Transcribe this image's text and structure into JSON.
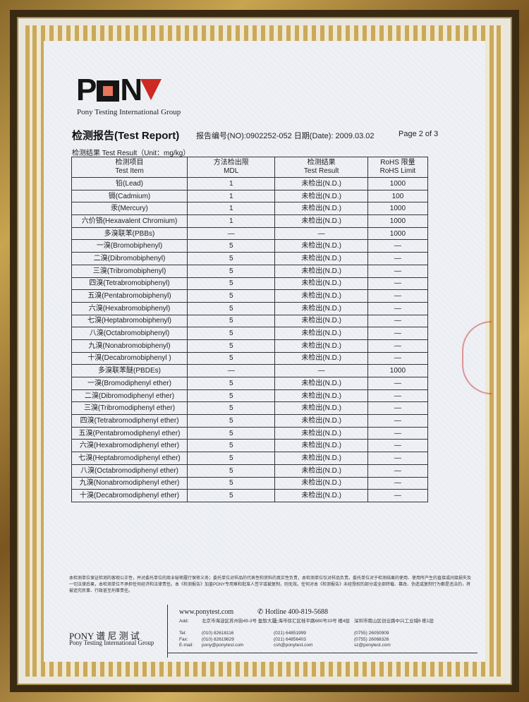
{
  "logo": {
    "text": "PONY",
    "subtitle": "Pony Testing International Group"
  },
  "header": {
    "title": "检测报告(Test Report)",
    "report_no": "报告编号(NO):0902252-052",
    "date": "日期(Date): 2009.03.02",
    "page": "Page 2 of 3"
  },
  "unit_label": "检测结果 Test Result（Unit：mg/kg）",
  "table": {
    "headers": [
      [
        "检测项目",
        "Test Item"
      ],
      [
        "方法检出限",
        "MDL"
      ],
      [
        "检测结果",
        "Test Result"
      ],
      [
        "RoHS 限量",
        "RoHS Limit"
      ]
    ],
    "rows": [
      [
        "铅(Lead)",
        "1",
        "未检出(N.D.)",
        "1000"
      ],
      [
        "镉(Cadmium)",
        "1",
        "未检出(N.D.)",
        "100"
      ],
      [
        "汞(Mercury)",
        "1",
        "未检出(N.D.)",
        "1000"
      ],
      [
        "六价铬(Hexavalent Chromium)",
        "1",
        "未检出(N.D.)",
        "1000"
      ],
      [
        "多溴联苯(PBBs)",
        "—",
        "—",
        "1000"
      ],
      [
        "一溴(Bromobiphenyl)",
        "5",
        "未检出(N.D.)",
        "—"
      ],
      [
        "二溴(Dibromobiphenyl)",
        "5",
        "未检出(N.D.)",
        "—"
      ],
      [
        "三溴(Tribromobiphenyl)",
        "5",
        "未检出(N.D.)",
        "—"
      ],
      [
        "四溴(Tetrabromobiphenyl)",
        "5",
        "未检出(N.D.)",
        "—"
      ],
      [
        "五溴(Pentabromobiphenyl)",
        "5",
        "未检出(N.D.)",
        "—"
      ],
      [
        "六溴(Hexabromobiphenyl)",
        "5",
        "未检出(N.D.)",
        "—"
      ],
      [
        "七溴(Heptabromobiphenyl)",
        "5",
        "未检出(N.D.)",
        "—"
      ],
      [
        "八溴(Octabromobiphenyl)",
        "5",
        "未检出(N.D.)",
        "—"
      ],
      [
        "九溴(Nonabromobiphenyl)",
        "5",
        "未检出(N.D.)",
        "—"
      ],
      [
        "十溴(Decabromobiphenyl )",
        "5",
        "未检出(N.D.)",
        "—"
      ],
      [
        "多溴联苯醚(PBDEs)",
        "—",
        "—",
        "1000"
      ],
      [
        "一溴(Bromodiphenyl ether)",
        "5",
        "未检出(N.D.)",
        "—"
      ],
      [
        "二溴(Dibromodiphenyl ether)",
        "5",
        "未检出(N.D.)",
        "—"
      ],
      [
        "三溴(Tribromodiphenyl ether)",
        "5",
        "未检出(N.D.)",
        "—"
      ],
      [
        "四溴(Tetrabromodiphenyl ether)",
        "5",
        "未检出(N.D.)",
        "—"
      ],
      [
        "五溴(Pentabromodiphenyl ether)",
        "5",
        "未检出(N.D.)",
        "—"
      ],
      [
        "六溴(Hexabromodiphenyl ether)",
        "5",
        "未检出(N.D.)",
        "—"
      ],
      [
        "七溴(Heptabromodiphenyl ether)",
        "5",
        "未检出(N.D.)",
        "—"
      ],
      [
        "八溴(Octabromodiphenyl ether)",
        "5",
        "未检出(N.D.)",
        "—"
      ],
      [
        "九溴(Nonabromodiphenyl ether)",
        "5",
        "未检出(N.D.)",
        "—"
      ],
      [
        "十溴(Decabromodiphenyl ether)",
        "5",
        "未检出(N.D.)",
        "—"
      ]
    ]
  },
  "disclaimer": "本检测单位保证检测的客观公正性，并对委托单位的商业秘密履行保密义务；委托单位对样品的代表性和资料的真实性负责，本检测单位仅对样品负责。委托单位对于检测结果的使用、使用所产生的直接或间接损失及一切法律后果，本检测单位不承担任何经济和法律责任。本《检测报告》加盖PONY专用章和批准人签字或被复制，则无效。任何对本《检测报告》未经授权的部分或全部转载、篡改、伪造或复制行为都是违法的，将被追究民事、行政甚至刑事责任。",
  "footer": {
    "brand": "PONY 谱 尼 测 试",
    "brand_sub": "Pony Testing International Group",
    "website": "www.ponytest.com",
    "hotline": "Hotline 400-819-5688",
    "labels": [
      "Add:",
      "Tel:",
      "Fax:",
      "E-mail:"
    ],
    "offices": [
      {
        "address": "北京市海淀区苏州街49-3号 盈智大厦",
        "tel": "(010) 82618116",
        "fax": "(010) 82619629",
        "email": "pony@ponytest.com"
      },
      {
        "address": "上海市徐汇区桂平路680号33号 楼4层",
        "tel": "(021) 64851999",
        "fax": "(021) 64856403",
        "email": "csh@ponytest.com"
      },
      {
        "address": "深圳市南山区创业路中兴工业城6 栋1层",
        "tel": "(0755) 26050909",
        "fax": "(0755) 26068326",
        "email": "sz@ponytest.com"
      }
    ]
  },
  "colors": {
    "logo_red": "#cc2a22",
    "logo_orange": "#e7775a",
    "frame_gold": "#c9a44f"
  }
}
